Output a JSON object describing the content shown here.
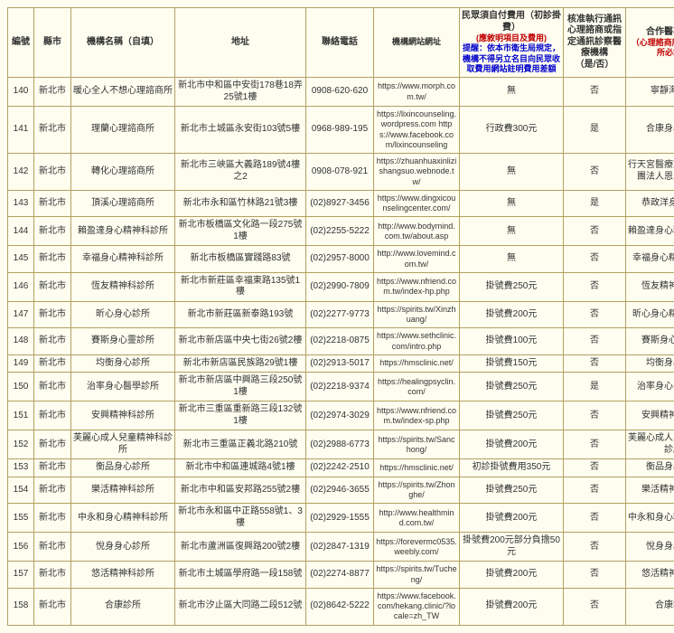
{
  "headers": {
    "num": "編號",
    "city": "縣市",
    "name": "機構名稱（自填）",
    "addr": "地址",
    "phone": "聯絡電話",
    "url": "機構網站網址",
    "fee_main": "民眾須自付費用（初診掛費）",
    "fee_red1": "(應敘明項目及費用)",
    "fee_blue": "提醒：依本市衛生局規定，機構不得另立名目向民眾收取費用網站註明費用差額",
    "yn_main": "核准執行通訊心理諮商或指定通訊診察醫療機構",
    "yn_sub": "（是/否）",
    "partner_main": "合作醫事機構",
    "partner_sub": "（心理諮商所/心理治療所必填）"
  },
  "rows": [
    {
      "n": "140",
      "city": "新北市",
      "name": "暖心全人不想心理諮商所",
      "addr": "新北市中和區中安街178巷18弄25號1樓",
      "phone": "0908-620-620",
      "url": "https://www.morph.com.tw/",
      "fee": "無",
      "yn": "否",
      "partner": "寧靜海診所"
    },
    {
      "n": "141",
      "city": "新北市",
      "name": "理蘭心理諮商所",
      "addr": "新北市土城區永安街103號5樓",
      "phone": "0968-989-195",
      "url": "https://lixincounseling.wordpress.com  https://www.facebook.com/lixincounseling",
      "fee": "行政費300元",
      "yn": "是",
      "partner": "合康身心診所"
    },
    {
      "n": "142",
      "city": "新北市",
      "name": "轉化心理諮商所",
      "addr": "新北市三峽區大義路189號4樓之2",
      "phone": "0908-078-921",
      "url": "https://zhuanhuaxinlizishangsuo.webnode.tw/",
      "fee": "無",
      "yn": "否",
      "partner": "行天宮醫療志業醫療財團法人恩主公醫院"
    },
    {
      "n": "143",
      "city": "新北市",
      "name": "頂溪心理諮商所",
      "addr": "新北市永和區竹林路21號3樓",
      "phone": "(02)8927-3456",
      "url": "https://www.dingxicounselingcenter.com/",
      "fee": "無",
      "yn": "是",
      "partner": "恭政洋身心診所"
    },
    {
      "n": "144",
      "city": "新北市",
      "name": "賴盈達身心精神科診所",
      "addr": "新北市板橋區文化路一段275號1樓",
      "phone": "(02)2255-5222",
      "url": "http://www.bodymind.com.tw/about.asp",
      "fee": "無",
      "yn": "否",
      "partner": "賴盈達身心精神科診所"
    },
    {
      "n": "145",
      "city": "新北市",
      "name": "幸福身心精神科診所",
      "addr": "新北市板橋區實踐路83號",
      "phone": "(02)2957-8000",
      "url": "http://www.lovemind.com.tw/",
      "fee": "無",
      "yn": "否",
      "partner": "幸福身心精神科診所"
    },
    {
      "n": "146",
      "city": "新北市",
      "name": "恆友精神科診所",
      "addr": "新北市新莊區幸福東路135號1樓",
      "phone": "(02)2990-7809",
      "url": "https://www.nfriend.com.tw/index-hp.php",
      "fee": "掛號費250元",
      "yn": "否",
      "partner": "恆友精神科診所"
    },
    {
      "n": "147",
      "city": "新北市",
      "name": "昕心身心診所",
      "addr": "新北市新莊區新泰路193號",
      "phone": "(02)2277-9773",
      "url": "https://spirits.tw/Xinzhuang/",
      "fee": "掛號費200元",
      "yn": "否",
      "partner": "昕心身心精神科診所"
    },
    {
      "n": "148",
      "city": "新北市",
      "name": "賽斯身心靈診所",
      "addr": "新北市新店區中央七街26號2樓",
      "phone": "(02)2218-0875",
      "url": "https://www.sethclinic.com/intro.php",
      "fee": "掛號費100元",
      "yn": "否",
      "partner": "賽斯身心靈診所"
    },
    {
      "n": "149",
      "city": "新北市",
      "name": "均衡身心診所",
      "addr": "新北市新店區民族路29號1樓",
      "phone": "(02)2913-5017",
      "url": "https://hmsclinic.net/",
      "fee": "掛號費150元",
      "yn": "否",
      "partner": "均衡身心診所"
    },
    {
      "n": "150",
      "city": "新北市",
      "name": "治率身心醫學診所",
      "addr": "新北市新店區中興路三段250號1樓",
      "phone": "(02)2218-9374",
      "url": "https://healingpsyclin.com/",
      "fee": "掛號費250元",
      "yn": "是",
      "partner": "治率身心醫學診所"
    },
    {
      "n": "151",
      "city": "新北市",
      "name": "安興精神科診所",
      "addr": "新北市三重區重新路三段132號1樓",
      "phone": "(02)2974-3029",
      "url": "https://www.nfriend.com.tw/index-sp.php",
      "fee": "掛號費250元",
      "yn": "否",
      "partner": "安興精神科診所"
    },
    {
      "n": "152",
      "city": "新北市",
      "name": "芙麗心成人兒童精神科診所",
      "addr": "新北市三重區正義北路210號",
      "phone": "(02)2988-6773",
      "url": "https://spirits.tw/Sanchong/",
      "fee": "掛號費200元",
      "yn": "否",
      "partner": "芙麗心成人兒童精神科診所"
    },
    {
      "n": "153",
      "city": "新北市",
      "name": "衡品身心診所",
      "addr": "新北市中和區連城路4號1樓",
      "phone": "(02)2242-2510",
      "url": "https://hmsclinic.net/",
      "fee": "初診掛號費用350元",
      "yn": "否",
      "partner": "衡品身心診所"
    },
    {
      "n": "154",
      "city": "新北市",
      "name": "樂活精神科診所",
      "addr": "新北市中和區安邦路255號2樓",
      "phone": "(02)2946-3655",
      "url": "https://spirits.tw/Zhonghe/",
      "fee": "掛號費250元",
      "yn": "否",
      "partner": "樂活精神科診所"
    },
    {
      "n": "155",
      "city": "新北市",
      "name": "中永和身心精神科診所",
      "addr": "新北市永和區中正路558號1、3樓",
      "phone": "(02)2929-1555",
      "url": "http://www.healthmind.com.tw/",
      "fee": "掛號費200元",
      "yn": "否",
      "partner": "中永和身心精神科診所"
    },
    {
      "n": "156",
      "city": "新北市",
      "name": "悅身身心診所",
      "addr": "新北市蘆洲區復興路200號2樓",
      "phone": "(02)2847-1319",
      "url": "https://forevermc0535.weebly.com/",
      "fee": "掛號費200元部分負擔50元",
      "yn": "否",
      "partner": "悅身身心診所"
    },
    {
      "n": "157",
      "city": "新北市",
      "name": "悠活精神科診所",
      "addr": "新北市土城區學府路一段158號",
      "phone": "(02)2274-8877",
      "url": "https://spirits.tw/Tucheng/",
      "fee": "掛號費200元",
      "yn": "否",
      "partner": "悠活精神科診所"
    },
    {
      "n": "158",
      "city": "新北市",
      "name": "合康診所",
      "addr": "新北市汐止區大同路二段512號",
      "phone": "(02)8642-5222",
      "url": "https://www.facebook.com/hekang.clinic/?locale=zh_TW",
      "fee": "掛號費200元",
      "yn": "否",
      "partner": "合康診所"
    }
  ]
}
